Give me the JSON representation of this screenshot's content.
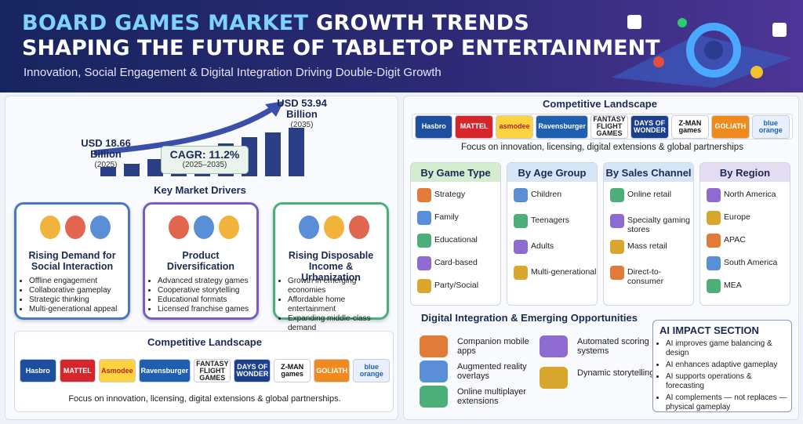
{
  "header": {
    "title_highlight": "BOARD GAMES MARKET",
    "title_rest": "GROWTH TRENDS",
    "title_line2": "SHAPING THE FUTURE OF TABLETOP ENTERTAINMENT",
    "subtitle": "Innovation, Social Engagement & Digital Integration Driving Double-Digit Growth"
  },
  "market_size": {
    "start_value": "USD 18.66",
    "start_unit": "Billion",
    "start_year": "(2025)",
    "end_value": "USD 53.94",
    "end_unit": "Billion",
    "end_year": "(2035)",
    "cagr": "CAGR: 11.2%",
    "cagr_period": "(2025–2035)"
  },
  "drivers": {
    "title": "Key Market Drivers",
    "cards": [
      {
        "title": "Rising Demand for Social Interaction",
        "bullets": [
          "Offline engagement",
          "Collaborative gameplay",
          "Strategic thinking",
          "Multi-generational appeal"
        ]
      },
      {
        "title": "Product Diversification",
        "bullets": [
          "Advanced strategy games",
          "Cooperative storytelling",
          "Educational formats",
          "Licensed franchise games"
        ]
      },
      {
        "title": "Rising Disposable Income & Urbanization",
        "bullets": [
          "Growth in emerging economies",
          "Affordable home entertainment",
          "Expanding middle-class demand"
        ]
      }
    ]
  },
  "competitive_left": {
    "title": "Competitive Landscape",
    "logos": [
      "Hasbro",
      "MATTEL",
      "Asmodee",
      "Ravensburger",
      "FANTASY FLIGHT GAMES",
      "DAYS OF WONDER",
      "Z-MAN games",
      "GOLIATH",
      "blue orange"
    ],
    "footer": "Focus on innovation, licensing, digital extensions & global partnerships."
  },
  "competitive_right": {
    "title": "Competitive Landscape",
    "logos": [
      "Hasbro",
      "MATTEL",
      "asmodee",
      "Ravensburger",
      "FANTASY FLIGHT GAMES",
      "DAYS OF WONDER",
      "Z-MAN games",
      "GOLIATH",
      "blue orange"
    ],
    "footer": "Focus on innovation, licensing, digital extensions & global partnerships"
  },
  "segments": [
    {
      "title": "By Game Type",
      "items": [
        "Strategy",
        "Family",
        "Educational",
        "Card-based",
        "Party/Social"
      ]
    },
    {
      "title": "By Age Group",
      "items": [
        "Children",
        "Teenagers",
        "Adults",
        "Multi-generational"
      ]
    },
    {
      "title": "By Sales Channel",
      "items": [
        "Online retail",
        "Specialty gaming stores",
        "Mass retail",
        "Direct-to-consumer"
      ]
    },
    {
      "title": "By Region",
      "items": [
        "North America",
        "Europe",
        "APAC",
        "South America",
        "MEA"
      ]
    }
  ],
  "digital": {
    "title": "Digital Integration & Emerging Opportunities",
    "items": [
      "Companion mobile apps",
      "Augmented reality overlays",
      "Online multiplayer extensions",
      "Automated scoring systems",
      "Dynamic storytelling"
    ]
  },
  "ai": {
    "title": "AI IMPACT SECTION",
    "bullets": [
      "AI improves game balancing & design",
      "AI enhances adaptive gameplay",
      "AI supports operations & forecasting",
      "AI complements — not replaces — physical gameplay"
    ]
  }
}
